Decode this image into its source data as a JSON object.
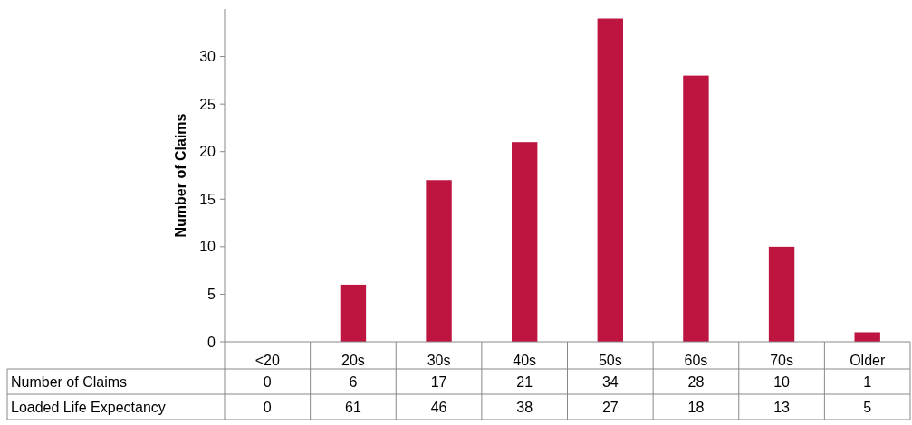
{
  "chart_data": {
    "type": "bar",
    "ylabel": "Number of Claims",
    "categories": [
      "<20",
      "20s",
      "30s",
      "40s",
      "50s",
      "60s",
      "70s",
      "Older"
    ],
    "series": [
      {
        "name": "Number of Claims",
        "color": "#be1540",
        "values": [
          0,
          6,
          17,
          21,
          34,
          28,
          10,
          1
        ]
      }
    ],
    "annotations": [
      "Loaded Life Expectancy",
      "0",
      "61",
      "46",
      "38",
      "27",
      "18",
      "13",
      "5"
    ],
    "ylim": [
      0,
      35
    ],
    "yticks": [
      0,
      5,
      10,
      15,
      20,
      25,
      30
    ],
    "data_labels": true,
    "grid": false,
    "legend": false
  }
}
